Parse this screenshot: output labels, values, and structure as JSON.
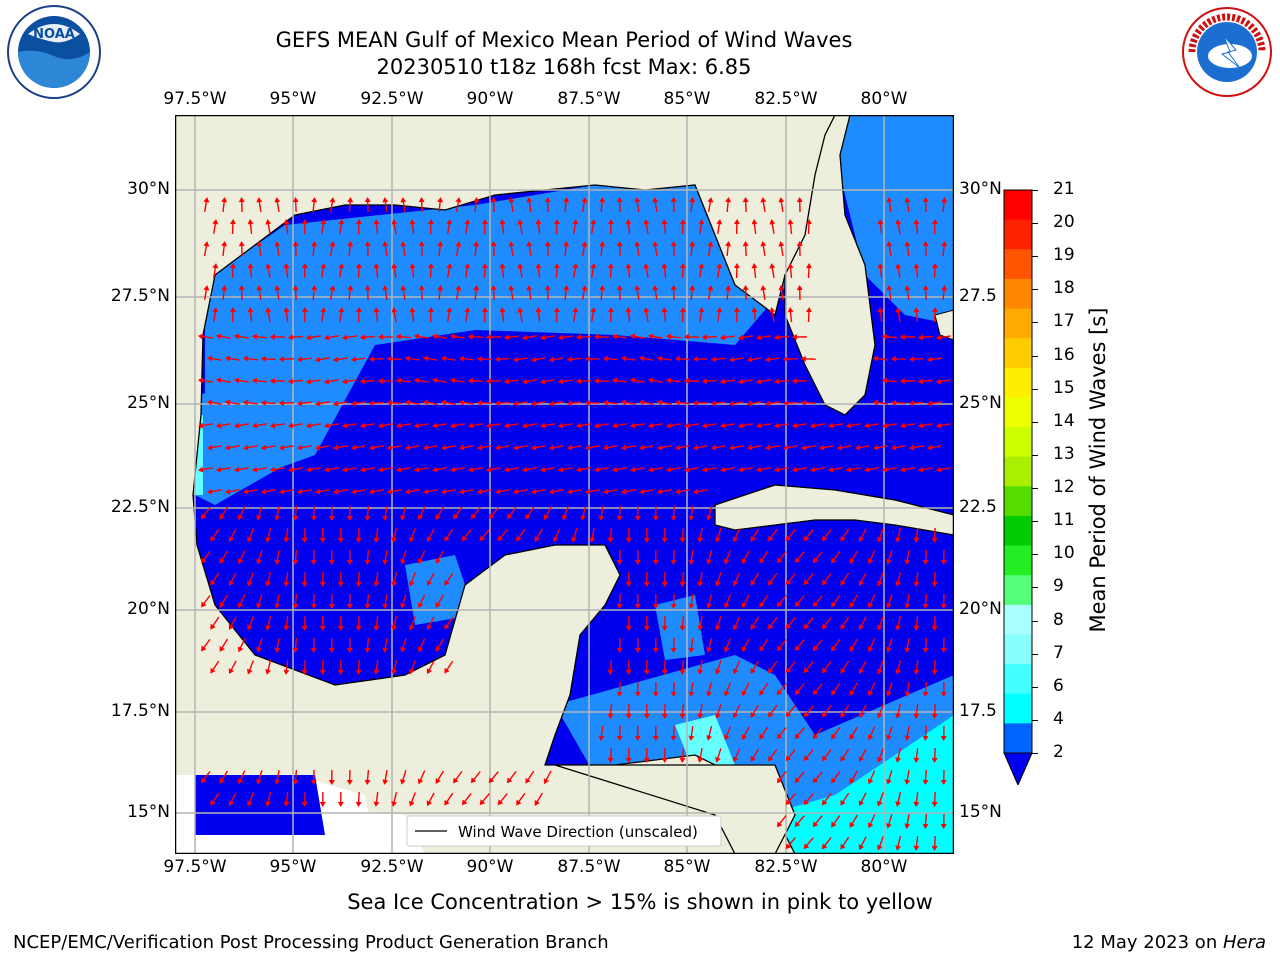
{
  "title": {
    "line1": "GEFS MEAN Gulf of Mexico Mean Period of Wind Waves",
    "line2": "20230510 t18z 168h fcst   Max: 6.85"
  },
  "logos": {
    "left": {
      "name": "noaa-logo",
      "text": "NOAA"
    },
    "right": {
      "name": "nws-logo",
      "text": "NATIONAL WEATHER SERVICE"
    }
  },
  "map": {
    "lon_ticks": [
      "97.5°W",
      "95°W",
      "92.5°W",
      "90°W",
      "87.5°W",
      "85°W",
      "82.5°W",
      "80°W"
    ],
    "lat_ticks_left": [
      "30°N",
      "27.5°N",
      "25°N",
      "22.5°N",
      "20°N",
      "17.5°N",
      "15°N"
    ],
    "lat_ticks_right": [
      "30°N",
      "27.5",
      "25°N",
      "22.5",
      "20°N",
      "17.5",
      "15°N"
    ],
    "legend_label": "Wind Wave Direction (unscaled)",
    "colors": {
      "land": "#eeeedc",
      "low_period": "#0000ee",
      "mid_period": "#1e8cff",
      "cyan": "#00ffff",
      "arrow": "#ff0000",
      "grid": "#b4b4b4"
    }
  },
  "colorbar": {
    "label": "Mean Period of Wind Waves [s]",
    "ticks": [
      "2",
      "4",
      "6",
      "7",
      "8",
      "9",
      "10",
      "11",
      "12",
      "13",
      "14",
      "15",
      "16",
      "17",
      "18",
      "19",
      "20",
      "21"
    ],
    "colors": [
      "#0064ff",
      "#00ffff",
      "#44ffff",
      "#88ffff",
      "#aaffff",
      "#55ff77",
      "#22ee22",
      "#00cc00",
      "#55dd00",
      "#aaee00",
      "#ccff00",
      "#eeff00",
      "#ffee00",
      "#ffcc00",
      "#ffaa00",
      "#ff8800",
      "#ff5500",
      "#ff2200",
      "#ff0000"
    ]
  },
  "caption": "Sea Ice Concentration > 15% is shown in pink to yellow",
  "footer": {
    "left": "NCEP/EMC/Verification Post Processing Product Generation Branch",
    "right_prefix": "12 May 2023 on ",
    "right_host": "Hera"
  }
}
